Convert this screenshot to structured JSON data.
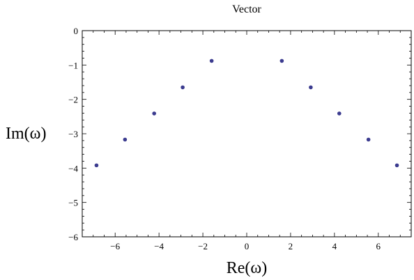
{
  "chart_data": {
    "type": "scatter",
    "title": "Vector",
    "xlabel": "Re(ω)",
    "ylabel": "Im(ω)",
    "xlim": [
      -7.5,
      7.5
    ],
    "ylim": [
      -6,
      0
    ],
    "grid": false,
    "x_ticks": [
      -6,
      -4,
      -2,
      0,
      2,
      4,
      6
    ],
    "x_tick_labels": [
      "−6",
      "−4",
      "−2",
      "0",
      "2",
      "4",
      "6"
    ],
    "y_ticks": [
      0,
      -1,
      -2,
      -3,
      -4,
      -5,
      -6
    ],
    "y_tick_labels": [
      "0",
      "−1",
      "−2",
      "−3",
      "−4",
      "−5",
      "−6"
    ],
    "point_color": "#3b3b8f",
    "series": [
      {
        "points": [
          {
            "x": -6.85,
            "y": -3.92
          },
          {
            "x": -5.55,
            "y": -3.17
          },
          {
            "x": -4.22,
            "y": -2.41
          },
          {
            "x": -2.92,
            "y": -1.65
          },
          {
            "x": -1.6,
            "y": -0.88
          },
          {
            "x": 1.6,
            "y": -0.88
          },
          {
            "x": 2.92,
            "y": -1.65
          },
          {
            "x": 4.22,
            "y": -2.41
          },
          {
            "x": 5.55,
            "y": -3.17
          },
          {
            "x": 6.85,
            "y": -3.92
          }
        ]
      }
    ]
  }
}
